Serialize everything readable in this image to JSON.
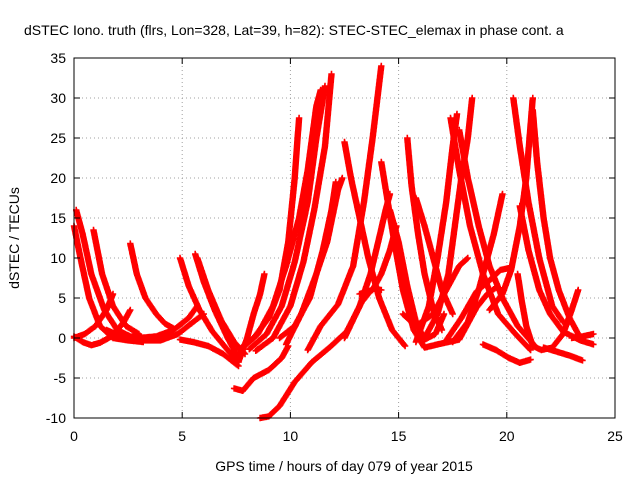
{
  "chart_data": {
    "type": "scatter",
    "title": "dSTEC Iono. truth (flrs, Lon=328, Lat=39, h=82): STEC-STEC_elemax in phase cont. a",
    "xlabel": "GPS time / hours of day 079 of year 2015",
    "ylabel": "dSTEC  / TECUs",
    "xlim": [
      0,
      25
    ],
    "ylim": [
      -10,
      35
    ],
    "x_ticks": [
      "0",
      "5",
      "10",
      "15",
      "20",
      "25"
    ],
    "y_ticks": [
      "-10",
      "-5",
      "0",
      "5",
      "10",
      "15",
      "20",
      "25",
      "30",
      "35"
    ],
    "grid": true,
    "marker": "+",
    "color": "#ff0000",
    "series": [
      {
        "points": [
          [
            0,
            0
          ],
          [
            0.5,
            0.5
          ],
          [
            1,
            1.5
          ],
          [
            1.5,
            3.5
          ],
          [
            1.8,
            5.5
          ]
        ]
      },
      {
        "points": [
          [
            0,
            14
          ],
          [
            0.3,
            10
          ],
          [
            0.7,
            5
          ],
          [
            1.2,
            1.5
          ],
          [
            1.8,
            0
          ],
          [
            2.5,
            -0.3
          ],
          [
            3.2,
            -0.5
          ]
        ]
      },
      {
        "points": [
          [
            0.1,
            16
          ],
          [
            0.4,
            13
          ],
          [
            0.8,
            8
          ],
          [
            1.4,
            3.5
          ],
          [
            2,
            1
          ],
          [
            2.6,
            0.2
          ],
          [
            3.2,
            0
          ]
        ]
      },
      {
        "points": [
          [
            0,
            0.2
          ],
          [
            0.4,
            -0.5
          ],
          [
            0.8,
            -0.9
          ],
          [
            1.2,
            -0.6
          ],
          [
            1.8,
            0.3
          ],
          [
            2.3,
            2
          ],
          [
            2.6,
            3.5
          ]
        ]
      },
      {
        "points": [
          [
            0.9,
            13.5
          ],
          [
            1.3,
            8
          ],
          [
            1.8,
            4
          ],
          [
            2.4,
            1.5
          ],
          [
            3,
            0.5
          ]
        ]
      },
      {
        "points": [
          [
            2.6,
            11.8
          ],
          [
            2.9,
            8
          ],
          [
            3.3,
            5
          ],
          [
            3.8,
            3
          ],
          [
            4.2,
            1.8
          ],
          [
            4.6,
            1.2
          ]
        ]
      },
      {
        "points": [
          [
            1.5,
            1
          ],
          [
            2.2,
            0.2
          ],
          [
            3,
            0
          ],
          [
            3.8,
            0.2
          ],
          [
            4.6,
            1
          ],
          [
            5.3,
            2.5
          ],
          [
            5.7,
            4
          ]
        ]
      },
      {
        "points": [
          [
            2.2,
            0.6
          ],
          [
            3,
            -0.3
          ],
          [
            4,
            -0.3
          ],
          [
            4.8,
            0.5
          ],
          [
            5.6,
            2.2
          ],
          [
            6,
            3
          ]
        ]
      },
      {
        "points": [
          [
            4.9,
            10
          ],
          [
            5.3,
            6.5
          ],
          [
            5.8,
            3.5
          ],
          [
            6.4,
            0.8
          ],
          [
            7.1,
            -1.5
          ],
          [
            7.6,
            -3
          ]
        ]
      },
      {
        "points": [
          [
            5.6,
            10.5
          ],
          [
            6,
            7
          ],
          [
            6.5,
            3.5
          ],
          [
            7.1,
            0
          ],
          [
            7.6,
            -2.5
          ]
        ]
      },
      {
        "points": [
          [
            5.7,
            10
          ],
          [
            6.2,
            6
          ],
          [
            6.8,
            2.2
          ],
          [
            7.4,
            -0.5
          ],
          [
            7.9,
            -2
          ]
        ]
      },
      {
        "points": [
          [
            4.9,
            -0.2
          ],
          [
            5.5,
            -0.5
          ],
          [
            6.2,
            -1
          ],
          [
            6.9,
            -2
          ],
          [
            7.6,
            -3.5
          ]
        ]
      },
      {
        "points": [
          [
            7.6,
            -3
          ],
          [
            8,
            0
          ],
          [
            8.3,
            3
          ],
          [
            8.6,
            5.5
          ],
          [
            8.8,
            8
          ]
        ]
      },
      {
        "points": [
          [
            7.4,
            -6.3
          ],
          [
            7.8,
            -6.6
          ],
          [
            8.3,
            -5
          ],
          [
            9,
            -4
          ],
          [
            9.6,
            -2.5
          ],
          [
            9.9,
            -1
          ]
        ]
      },
      {
        "points": [
          [
            8.6,
            -10
          ],
          [
            9,
            -9.8
          ],
          [
            9.5,
            -8.5
          ],
          [
            10.2,
            -5.5
          ],
          [
            11,
            -3
          ],
          [
            11.8,
            -1.2
          ],
          [
            12.6,
            0.8
          ],
          [
            13.3,
            4.5
          ],
          [
            13.8,
            6.2
          ],
          [
            14.2,
            6
          ]
        ]
      },
      {
        "points": [
          [
            7.6,
            -1.5
          ],
          [
            8.3,
            0
          ],
          [
            9,
            2.5
          ],
          [
            9.5,
            6
          ],
          [
            9.9,
            12
          ],
          [
            10.2,
            20
          ],
          [
            10.4,
            27.5
          ]
        ]
      },
      {
        "points": [
          [
            7.8,
            -1.2
          ],
          [
            8.5,
            0.5
          ],
          [
            9.2,
            4
          ],
          [
            9.8,
            9
          ],
          [
            10.4,
            15
          ],
          [
            10.8,
            21
          ],
          [
            11.2,
            29
          ],
          [
            11.4,
            31
          ]
        ]
      },
      {
        "points": [
          [
            8.1,
            -1.4
          ],
          [
            8.9,
            0.5
          ],
          [
            9.6,
            4
          ],
          [
            10.2,
            9.5
          ],
          [
            10.8,
            17
          ],
          [
            11.2,
            25
          ],
          [
            11.6,
            31.5
          ]
        ]
      },
      {
        "points": [
          [
            8.4,
            -1.6
          ],
          [
            9.2,
            0
          ],
          [
            10,
            4
          ],
          [
            10.6,
            9.5
          ],
          [
            11.1,
            16
          ],
          [
            11.6,
            24
          ],
          [
            11.9,
            33
          ]
        ]
      },
      {
        "points": [
          [
            9.8,
            -0.8
          ],
          [
            10.5,
            3
          ],
          [
            11.2,
            8
          ],
          [
            11.7,
            12
          ],
          [
            12.2,
            18.5
          ],
          [
            12.4,
            20
          ]
        ]
      },
      {
        "points": [
          [
            9.5,
            0
          ],
          [
            10.2,
            1.5
          ],
          [
            10.9,
            5
          ],
          [
            11.5,
            11
          ],
          [
            11.9,
            16
          ],
          [
            12.1,
            19.5
          ]
        ]
      },
      {
        "points": [
          [
            10.8,
            -1.5
          ],
          [
            11.4,
            1.5
          ],
          [
            12.2,
            4.2
          ],
          [
            12.9,
            9
          ],
          [
            13.4,
            17
          ],
          [
            13.8,
            25
          ],
          [
            14.2,
            34
          ]
        ]
      },
      {
        "points": [
          [
            12.5,
            24.5
          ],
          [
            12.8,
            20
          ],
          [
            13.2,
            15
          ],
          [
            13.6,
            10
          ],
          [
            14.1,
            5
          ],
          [
            14.7,
            1
          ],
          [
            15.3,
            -1
          ]
        ]
      },
      {
        "points": [
          [
            12.5,
            0
          ],
          [
            13.2,
            4
          ],
          [
            13.7,
            8
          ],
          [
            14.1,
            12.5
          ],
          [
            14.4,
            16
          ],
          [
            14.6,
            18
          ]
        ]
      },
      {
        "points": [
          [
            13.2,
            5.5
          ],
          [
            13.8,
            6
          ],
          [
            14.2,
            8
          ],
          [
            14.6,
            11
          ],
          [
            14.9,
            14
          ]
        ]
      },
      {
        "points": [
          [
            14.2,
            22
          ],
          [
            14.5,
            17
          ],
          [
            14.8,
            12
          ],
          [
            15.2,
            6
          ],
          [
            15.7,
            1
          ],
          [
            16.2,
            -1.2
          ],
          [
            16.8,
            -0.8
          ]
        ]
      },
      {
        "points": [
          [
            15.4,
            25
          ],
          [
            15.6,
            19
          ],
          [
            15.9,
            13
          ],
          [
            16.2,
            8
          ],
          [
            16.6,
            3.5
          ],
          [
            17,
            1
          ]
        ]
      },
      {
        "points": [
          [
            14.6,
            16
          ],
          [
            15,
            12
          ],
          [
            15.4,
            6.5
          ],
          [
            15.8,
            2
          ],
          [
            16.2,
            -0.2
          ],
          [
            16.7,
            0.5
          ],
          [
            17.1,
            3
          ]
        ]
      },
      {
        "points": [
          [
            15.8,
            17.5
          ],
          [
            16.2,
            14
          ],
          [
            16.6,
            10
          ],
          [
            17,
            6
          ],
          [
            17.5,
            3
          ]
        ]
      },
      {
        "points": [
          [
            15.2,
            3
          ],
          [
            15.8,
            1.5
          ],
          [
            16.6,
            3
          ],
          [
            17.2,
            6
          ],
          [
            17.8,
            9
          ],
          [
            18.2,
            10
          ]
        ]
      },
      {
        "points": [
          [
            16.2,
            0
          ],
          [
            16.8,
            3
          ],
          [
            17.3,
            8
          ],
          [
            17.6,
            14
          ],
          [
            17.9,
            20
          ],
          [
            18.2,
            25
          ],
          [
            18.4,
            30
          ]
        ]
      },
      {
        "points": [
          [
            15.8,
            -0.5
          ],
          [
            16.4,
            4
          ],
          [
            16.8,
            10
          ],
          [
            17.2,
            17
          ],
          [
            17.5,
            24
          ],
          [
            17.7,
            28
          ]
        ]
      },
      {
        "points": [
          [
            17.4,
            27.5
          ],
          [
            17.8,
            21
          ],
          [
            18.3,
            14
          ],
          [
            18.9,
            8
          ],
          [
            19.6,
            3
          ],
          [
            20.4,
            0.5
          ],
          [
            21.1,
            -1.5
          ]
        ]
      },
      {
        "points": [
          [
            17.8,
            26
          ],
          [
            18.2,
            20
          ],
          [
            18.7,
            14
          ],
          [
            19.2,
            9
          ],
          [
            19.8,
            5
          ],
          [
            20.5,
            1.5
          ],
          [
            21.3,
            -1
          ]
        ]
      },
      {
        "points": [
          [
            17.5,
            -0.5
          ],
          [
            18.2,
            2
          ],
          [
            18.7,
            6
          ],
          [
            19.1,
            10
          ],
          [
            19.4,
            13
          ],
          [
            19.8,
            18
          ]
        ]
      },
      {
        "points": [
          [
            19.2,
            3.5
          ],
          [
            19.8,
            5.5
          ],
          [
            20.2,
            8.5
          ],
          [
            20.6,
            14
          ],
          [
            20.9,
            20
          ],
          [
            21.2,
            30
          ]
        ]
      },
      {
        "points": [
          [
            17.2,
            -0.3
          ],
          [
            17.9,
            2.5
          ],
          [
            18.6,
            5.8
          ],
          [
            19.2,
            7.2
          ],
          [
            19.7,
            8.5
          ],
          [
            20.2,
            8.8
          ]
        ]
      },
      {
        "points": [
          [
            16.8,
            -0.8
          ],
          [
            17.8,
            -0.2
          ],
          [
            18.6,
            3.8
          ],
          [
            19.1,
            5.5
          ],
          [
            19.5,
            6.3
          ]
        ]
      },
      {
        "points": [
          [
            20.3,
            30
          ],
          [
            20.6,
            24
          ],
          [
            21,
            17
          ],
          [
            21.5,
            10
          ],
          [
            22.1,
            4
          ],
          [
            22.6,
            2
          ]
        ]
      },
      {
        "points": [
          [
            20.6,
            16.5
          ],
          [
            21,
            11
          ],
          [
            21.5,
            6
          ],
          [
            22,
            3
          ],
          [
            22.6,
            0.8
          ],
          [
            23.4,
            -0.3
          ],
          [
            24,
            -0.8
          ]
        ]
      },
      {
        "points": [
          [
            21.2,
            28.5
          ],
          [
            21.4,
            22
          ],
          [
            21.7,
            15
          ],
          [
            22,
            10
          ],
          [
            22.4,
            6
          ],
          [
            22.9,
            2.5
          ],
          [
            23.3,
            0.5
          ]
        ]
      },
      {
        "points": [
          [
            20.5,
            8
          ],
          [
            20.7,
            4.5
          ],
          [
            20.9,
            1.5
          ],
          [
            21.2,
            -1
          ],
          [
            21.6,
            -1.5
          ],
          [
            22.1,
            -1.2
          ],
          [
            22.6,
            0.5
          ],
          [
            23,
            3.5
          ],
          [
            23.3,
            6
          ]
        ]
      },
      {
        "points": [
          [
            18.9,
            -0.8
          ],
          [
            19.5,
            -1.5
          ],
          [
            20.1,
            -2.5
          ],
          [
            20.6,
            -3.1
          ],
          [
            21.1,
            -2.7
          ]
        ]
      },
      {
        "points": [
          [
            21.7,
            -1.2
          ],
          [
            22.3,
            -1.7
          ],
          [
            22.9,
            -2.2
          ],
          [
            23.5,
            -2.8
          ]
        ]
      },
      {
        "points": [
          [
            23,
            0
          ],
          [
            23.5,
            0.2
          ],
          [
            24,
            0.5
          ]
        ]
      }
    ]
  }
}
